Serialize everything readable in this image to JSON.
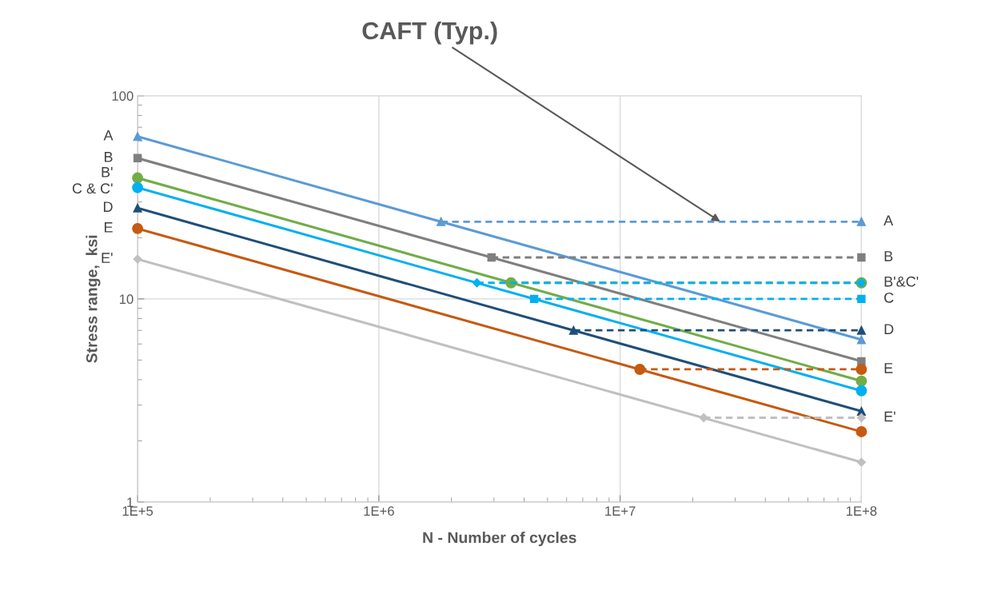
{
  "chart_data": {
    "type": "line",
    "xlabel": "N - Number of cycles",
    "ylabel": "Stress range,  ksi",
    "log": "xy",
    "grid": true,
    "xlim": [
      100000,
      100000000
    ],
    "xticks": [
      {
        "value": 100000,
        "label": "1E+5"
      },
      {
        "value": 1000000,
        "label": "1E+6"
      },
      {
        "value": 10000000,
        "label": "1E+7"
      },
      {
        "value": 100000000,
        "label": "1E+8"
      }
    ],
    "ylim": [
      1,
      100
    ],
    "yticks": [
      1,
      10,
      100
    ],
    "series": [
      {
        "color": "#5b9bd5",
        "marker": "triangle",
        "line_style": "solid",
        "x": [
          100000,
          100000000
        ],
        "values": [
          63.0,
          6.3
        ]
      },
      {
        "color": "#5b9bd5",
        "marker": "triangle",
        "line_style": "dashed",
        "x": [
          1810000,
          100000000
        ],
        "values": [
          24,
          24
        ]
      },
      {
        "color": "#7f7f7f",
        "marker": "square",
        "line_style": "solid",
        "x": [
          100000,
          100000000
        ],
        "values": [
          49.3,
          4.93
        ]
      },
      {
        "color": "#7f7f7f",
        "marker": "square",
        "line_style": "dashed",
        "x": [
          2930000,
          100000000
        ],
        "values": [
          16,
          16
        ]
      },
      {
        "color": "#70ad47",
        "marker": "circle",
        "line_style": "solid",
        "x": [
          100000,
          100000000
        ],
        "values": [
          39.4,
          3.94
        ]
      },
      {
        "color": "#70ad47",
        "marker": "circle",
        "line_style": "dashed",
        "x": [
          3530000,
          100000000
        ],
        "values": [
          12,
          12
        ]
      },
      {
        "color": "#00b0f0",
        "marker": "circle",
        "line_style": "solid",
        "x": [
          100000,
          100000000
        ],
        "values": [
          35.3,
          3.53
        ]
      },
      {
        "color": "#00b0f0",
        "marker": "diamond",
        "line_style": "dashed",
        "x": [
          2550000,
          100000000
        ],
        "values": [
          12,
          12
        ]
      },
      {
        "color": "#00b0f0",
        "marker": "square",
        "line_style": "dashed",
        "x": [
          4400000,
          100000000
        ],
        "values": [
          10,
          10
        ]
      },
      {
        "color": "#1f4e79",
        "marker": "triangle",
        "line_style": "solid",
        "x": [
          100000,
          100000000
        ],
        "values": [
          28.0,
          2.8
        ]
      },
      {
        "color": "#1f4e79",
        "marker": "triangle",
        "line_style": "dashed",
        "x": [
          6410000,
          100000000
        ],
        "values": [
          7,
          7
        ]
      },
      {
        "color": "#c55a11",
        "marker": "circle",
        "line_style": "solid",
        "x": [
          100000,
          100000000
        ],
        "values": [
          22.2,
          2.22
        ]
      },
      {
        "color": "#c55a11",
        "marker": "circle",
        "line_style": "dashed",
        "x": [
          12070000,
          100000000
        ],
        "values": [
          4.5,
          4.5
        ]
      },
      {
        "color": "#c0c0c0",
        "marker": "diamond",
        "line_style": "solid",
        "x": [
          100000,
          100000000
        ],
        "values": [
          15.7,
          1.57
        ]
      },
      {
        "color": "#c0c0c0",
        "marker": "diamond",
        "line_style": "dashed",
        "x": [
          22200000,
          100000000
        ],
        "values": [
          2.6,
          2.6
        ]
      }
    ],
    "annotations": [
      {
        "text": "A",
        "x": 100000,
        "y": 63.0
      },
      {
        "text": "B",
        "x": 100000,
        "y": 49.3
      },
      {
        "text": "B'",
        "x": 100000,
        "y": 41.5
      },
      {
        "text": "C & C'",
        "x": 100000,
        "y": 34.5
      },
      {
        "text": "D",
        "x": 100000,
        "y": 28.0
      },
      {
        "text": "E",
        "x": 100000,
        "y": 22.2
      },
      {
        "text": "E'",
        "x": 100000,
        "y": 15.7
      },
      {
        "text": "A",
        "x": 100000000,
        "y": 24
      },
      {
        "text": "B",
        "x": 100000000,
        "y": 16
      },
      {
        "text": "B'&C'",
        "x": 100000000,
        "y": 12
      },
      {
        "text": "C",
        "x": 100000000,
        "y": 10
      },
      {
        "text": "D",
        "x": 100000000,
        "y": 7
      },
      {
        "text": "E",
        "x": 100000000,
        "y": 4.5
      },
      {
        "text": "E'",
        "x": 100000000,
        "y": 2.6
      },
      {
        "text": "CAFT (Typ.)",
        "x": 26000000,
        "y": 24
      }
    ]
  }
}
